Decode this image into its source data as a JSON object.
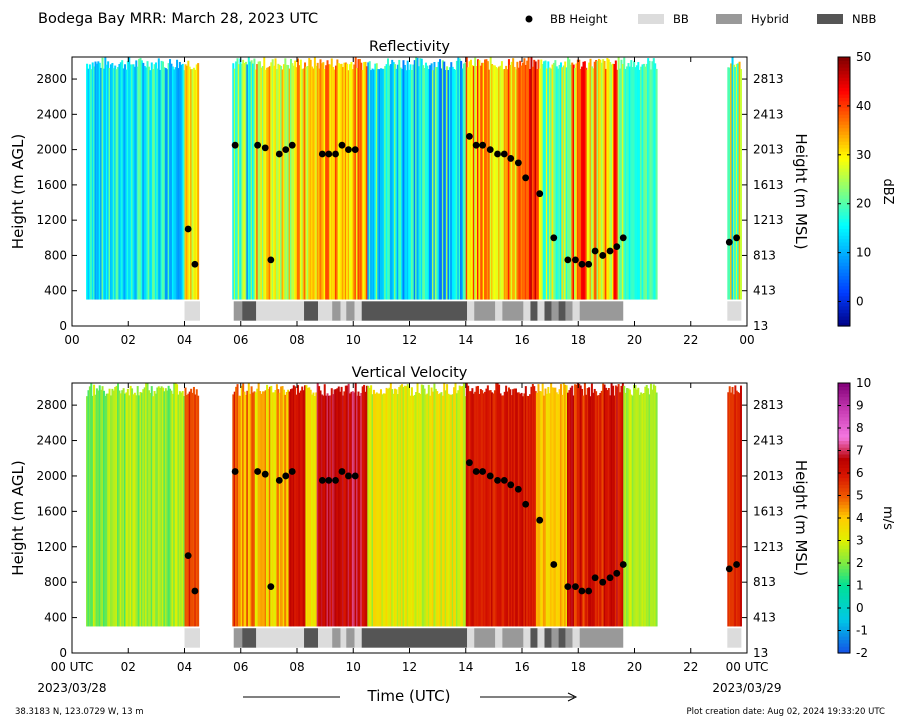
{
  "header": {
    "title": "Bodega Bay MRR:  March 28, 2023 UTC",
    "legend": [
      {
        "label": "BB Height",
        "kind": "dot",
        "color": "#000000"
      },
      {
        "label": "BB",
        "kind": "box",
        "color": "#dcdcdc"
      },
      {
        "label": "Hybrid",
        "kind": "box",
        "color": "#999999"
      },
      {
        "label": "NBB",
        "kind": "box",
        "color": "#555555"
      }
    ]
  },
  "footer": {
    "location": "38.3183 N, 123.0729 W, 13 m",
    "creation": "Plot creation date: Aug 02, 2024 19:33:20 UTC",
    "xlabel": "Time (UTC)",
    "start_time": "00 UTC",
    "start_date": "2023/03/28",
    "end_time": "00 UTC",
    "end_date": "2023/03/29"
  },
  "chart_data": [
    {
      "type": "heatmap",
      "title": "Reflectivity",
      "ylabel": "Height (m AGL)",
      "ylabel_right": "Height (m MSL)",
      "xlim": [
        0,
        24
      ],
      "ylim": [
        0,
        3050
      ],
      "x_ticks": [
        "00",
        "02",
        "04",
        "06",
        "08",
        "10",
        "12",
        "14",
        "16",
        "18",
        "20",
        "22",
        "00"
      ],
      "y_ticks_left": [
        0,
        400,
        800,
        1200,
        1600,
        2000,
        2400,
        2800
      ],
      "y_ticks_right": [
        "13",
        "413",
        "813",
        "1213",
        "1613",
        "2013",
        "2413",
        "2813"
      ],
      "colorbar": {
        "label": "dBZ",
        "min": -5,
        "max": 50,
        "ticks": [
          0,
          10,
          20,
          30,
          40,
          50
        ],
        "scheme": "jet"
      },
      "field_range": {
        "min": -5,
        "max": 50
      },
      "field": [
        {
          "x0": 0.5,
          "x1": 4.0,
          "v0": 8,
          "v1": 22
        },
        {
          "x0": 4.0,
          "x1": 4.5,
          "v0": 25,
          "v1": 35
        },
        {
          "x0": 5.7,
          "x1": 6.5,
          "v0": 5,
          "v1": 28
        },
        {
          "x0": 6.5,
          "x1": 8.7,
          "v0": 22,
          "v1": 38
        },
        {
          "x0": 8.7,
          "x1": 10.5,
          "v0": 28,
          "v1": 40
        },
        {
          "x0": 10.5,
          "x1": 14.0,
          "v0": 5,
          "v1": 25
        },
        {
          "x0": 14.0,
          "x1": 16.2,
          "v0": 25,
          "v1": 42
        },
        {
          "x0": 16.2,
          "x1": 16.6,
          "v0": 38,
          "v1": 47
        },
        {
          "x0": 16.6,
          "x1": 17.6,
          "v0": 15,
          "v1": 32
        },
        {
          "x0": 17.6,
          "x1": 19.6,
          "v0": 20,
          "v1": 45
        },
        {
          "x0": 19.6,
          "x1": 20.8,
          "v0": 15,
          "v1": 22
        },
        {
          "x0": 23.3,
          "x1": 23.8,
          "v0": 12,
          "v1": 35
        }
      ],
      "bb_height": {
        "x": [
          4.13,
          4.37,
          5.8,
          6.6,
          6.87,
          7.07,
          7.37,
          7.6,
          7.83,
          8.9,
          9.13,
          9.37,
          9.6,
          9.83,
          10.07,
          14.13,
          14.37,
          14.6,
          14.87,
          15.13,
          15.37,
          15.6,
          15.87,
          16.13,
          16.63,
          17.13,
          17.63,
          17.9,
          18.13,
          18.37,
          18.6,
          18.87,
          19.13,
          19.37,
          19.6,
          23.37,
          23.63
        ],
        "y": [
          1100,
          700,
          2050,
          2050,
          2020,
          750,
          1950,
          2000,
          2050,
          1950,
          1950,
          1950,
          2050,
          2000,
          2000,
          2150,
          2050,
          2050,
          2000,
          1950,
          1950,
          1900,
          1850,
          1680,
          1500,
          1000,
          750,
          750,
          700,
          700,
          850,
          800,
          850,
          900,
          1000,
          950,
          1000
        ]
      },
      "bb_type": [
        {
          "start": 4.0,
          "end": 4.55,
          "type": "BB"
        },
        {
          "start": 5.75,
          "end": 6.05,
          "type": "Hybrid"
        },
        {
          "start": 6.05,
          "end": 6.55,
          "type": "NBB"
        },
        {
          "start": 6.55,
          "end": 8.25,
          "type": "BB"
        },
        {
          "start": 8.25,
          "end": 8.75,
          "type": "NBB"
        },
        {
          "start": 8.75,
          "end": 9.25,
          "type": "BB"
        },
        {
          "start": 9.25,
          "end": 9.55,
          "type": "Hybrid"
        },
        {
          "start": 9.55,
          "end": 9.75,
          "type": "BB"
        },
        {
          "start": 9.75,
          "end": 10.05,
          "type": "Hybrid"
        },
        {
          "start": 10.05,
          "end": 10.3,
          "type": "BB"
        },
        {
          "start": 10.3,
          "end": 14.05,
          "type": "NBB"
        },
        {
          "start": 14.05,
          "end": 14.3,
          "type": "BB"
        },
        {
          "start": 14.3,
          "end": 15.05,
          "type": "Hybrid"
        },
        {
          "start": 15.05,
          "end": 15.3,
          "type": "BB"
        },
        {
          "start": 15.3,
          "end": 16.05,
          "type": "Hybrid"
        },
        {
          "start": 16.05,
          "end": 16.3,
          "type": "BB"
        },
        {
          "start": 16.3,
          "end": 16.55,
          "type": "NBB"
        },
        {
          "start": 16.55,
          "end": 16.8,
          "type": "BB"
        },
        {
          "start": 16.8,
          "end": 17.05,
          "type": "NBB"
        },
        {
          "start": 17.05,
          "end": 17.3,
          "type": "Hybrid"
        },
        {
          "start": 17.3,
          "end": 17.55,
          "type": "NBB"
        },
        {
          "start": 17.55,
          "end": 17.8,
          "type": "Hybrid"
        },
        {
          "start": 17.8,
          "end": 18.05,
          "type": "BB"
        },
        {
          "start": 18.05,
          "end": 19.6,
          "type": "Hybrid"
        },
        {
          "start": 23.3,
          "end": 23.8,
          "type": "BB"
        }
      ]
    },
    {
      "type": "heatmap",
      "title": "Vertical Velocity",
      "ylabel": "Height (m AGL)",
      "ylabel_right": "Height (m MSL)",
      "xlim": [
        0,
        24
      ],
      "ylim": [
        0,
        3050
      ],
      "x_ticks": [
        "00 UTC",
        "02",
        "04",
        "06",
        "08",
        "10",
        "12",
        "14",
        "16",
        "18",
        "20",
        "22",
        "00 UTC"
      ],
      "y_ticks_left": [
        0,
        400,
        800,
        1200,
        1600,
        2000,
        2400,
        2800
      ],
      "y_ticks_right": [
        "13",
        "413",
        "813",
        "1213",
        "1613",
        "2013",
        "2413",
        "2813"
      ],
      "colorbar": {
        "label": "m/s",
        "min": -2,
        "max": 10,
        "ticks": [
          -2,
          -1,
          0,
          1,
          2,
          3,
          4,
          5,
          6,
          7,
          8,
          9,
          10
        ],
        "scheme": "velocity"
      },
      "field_range": {
        "min": -2,
        "max": 10
      },
      "field": [
        {
          "x0": 0.5,
          "x1": 4.0,
          "v0": 1.5,
          "v1": 3.0
        },
        {
          "x0": 4.0,
          "x1": 4.5,
          "v0": 5.0,
          "v1": 6.2
        },
        {
          "x0": 5.7,
          "x1": 6.5,
          "v0": 3.5,
          "v1": 6.0
        },
        {
          "x0": 6.5,
          "x1": 7.7,
          "v0": 3.0,
          "v1": 5.0
        },
        {
          "x0": 7.7,
          "x1": 8.3,
          "v0": 5.5,
          "v1": 6.5
        },
        {
          "x0": 8.3,
          "x1": 8.7,
          "v0": 3.0,
          "v1": 4.0
        },
        {
          "x0": 8.7,
          "x1": 10.5,
          "v0": 5.8,
          "v1": 7.3
        },
        {
          "x0": 10.5,
          "x1": 14.0,
          "v0": 2.2,
          "v1": 4.0
        },
        {
          "x0": 14.0,
          "x1": 16.5,
          "v0": 5.5,
          "v1": 6.5
        },
        {
          "x0": 16.5,
          "x1": 17.6,
          "v0": 3.5,
          "v1": 4.5
        },
        {
          "x0": 17.6,
          "x1": 19.6,
          "v0": 5.0,
          "v1": 7.0
        },
        {
          "x0": 19.6,
          "x1": 20.8,
          "v0": 2.0,
          "v1": 3.0
        },
        {
          "x0": 23.3,
          "x1": 23.8,
          "v0": 5.0,
          "v1": 6.5
        }
      ],
      "bb_height": {
        "x": [
          4.13,
          4.37,
          5.8,
          6.6,
          6.87,
          7.07,
          7.37,
          7.6,
          7.83,
          8.9,
          9.13,
          9.37,
          9.6,
          9.83,
          10.07,
          14.13,
          14.37,
          14.6,
          14.87,
          15.13,
          15.37,
          15.6,
          15.87,
          16.13,
          16.63,
          17.13,
          17.63,
          17.9,
          18.13,
          18.37,
          18.6,
          18.87,
          19.13,
          19.37,
          19.6,
          23.37,
          23.63
        ],
        "y": [
          1100,
          700,
          2050,
          2050,
          2020,
          750,
          1950,
          2000,
          2050,
          1950,
          1950,
          1950,
          2050,
          2000,
          2000,
          2150,
          2050,
          2050,
          2000,
          1950,
          1950,
          1900,
          1850,
          1680,
          1500,
          1000,
          750,
          750,
          700,
          700,
          850,
          800,
          850,
          900,
          1000,
          950,
          1000
        ]
      },
      "bb_type": [
        {
          "start": 4.0,
          "end": 4.55,
          "type": "BB"
        },
        {
          "start": 5.75,
          "end": 6.05,
          "type": "Hybrid"
        },
        {
          "start": 6.05,
          "end": 6.55,
          "type": "NBB"
        },
        {
          "start": 6.55,
          "end": 8.25,
          "type": "BB"
        },
        {
          "start": 8.25,
          "end": 8.75,
          "type": "NBB"
        },
        {
          "start": 8.75,
          "end": 9.25,
          "type": "BB"
        },
        {
          "start": 9.25,
          "end": 9.55,
          "type": "Hybrid"
        },
        {
          "start": 9.55,
          "end": 9.75,
          "type": "BB"
        },
        {
          "start": 9.75,
          "end": 10.05,
          "type": "Hybrid"
        },
        {
          "start": 10.05,
          "end": 10.3,
          "type": "BB"
        },
        {
          "start": 10.3,
          "end": 14.05,
          "type": "NBB"
        },
        {
          "start": 14.05,
          "end": 14.3,
          "type": "BB"
        },
        {
          "start": 14.3,
          "end": 15.05,
          "type": "Hybrid"
        },
        {
          "start": 15.05,
          "end": 15.3,
          "type": "BB"
        },
        {
          "start": 15.3,
          "end": 16.05,
          "type": "Hybrid"
        },
        {
          "start": 16.05,
          "end": 16.3,
          "type": "BB"
        },
        {
          "start": 16.3,
          "end": 16.55,
          "type": "NBB"
        },
        {
          "start": 16.55,
          "end": 16.8,
          "type": "BB"
        },
        {
          "start": 16.8,
          "end": 17.05,
          "type": "NBB"
        },
        {
          "start": 17.05,
          "end": 17.3,
          "type": "Hybrid"
        },
        {
          "start": 17.3,
          "end": 17.55,
          "type": "NBB"
        },
        {
          "start": 17.55,
          "end": 17.8,
          "type": "Hybrid"
        },
        {
          "start": 17.8,
          "end": 18.05,
          "type": "BB"
        },
        {
          "start": 18.05,
          "end": 19.6,
          "type": "Hybrid"
        },
        {
          "start": 23.3,
          "end": 23.8,
          "type": "BB"
        }
      ]
    }
  ]
}
